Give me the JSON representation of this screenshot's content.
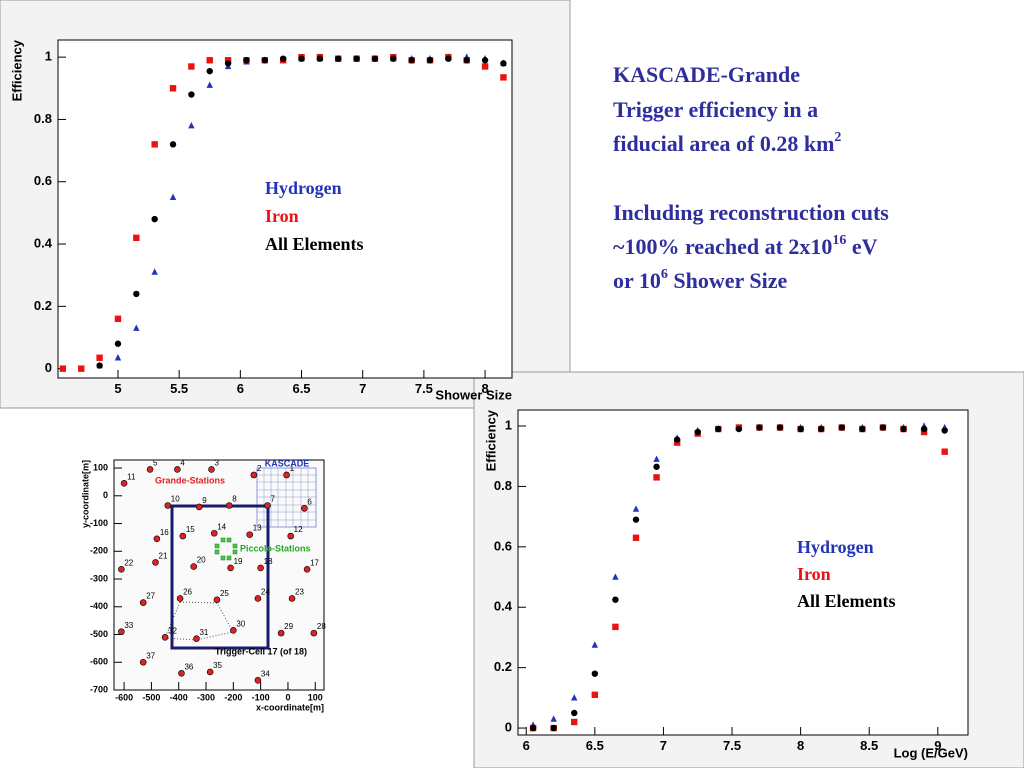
{
  "slide_text": {
    "paragraphs": [
      [
        [
          "KASCADE-Grande"
        ],
        [
          "Trigger efficiency in a"
        ],
        [
          "fiducial area of 0.28 km",
          "2"
        ]
      ],
      [
        [
          "Including reconstruction cuts"
        ],
        [
          "~100% reached at 2x10",
          "16",
          " eV"
        ],
        [
          "or 10",
          "6",
          " Shower Size"
        ]
      ]
    ]
  },
  "chart_data": [
    {
      "type": "scatter",
      "x_label": "Shower Size",
      "y_label": "Efficiency",
      "x": [
        4.55,
        4.7,
        4.85,
        5,
        5.15,
        5.3,
        5.45,
        5.6,
        5.75,
        5.9,
        6.05,
        6.2,
        6.35,
        6.5,
        6.65,
        6.8,
        6.95,
        7.1,
        7.25,
        7.4,
        7.55,
        7.7,
        7.85,
        8,
        8.15
      ],
      "series": [
        {
          "name": "Hydrogen",
          "color": "#2233bb",
          "marker": "triangle",
          "values": [
            null,
            null,
            0.01,
            0.035,
            0.13,
            0.31,
            0.55,
            0.78,
            0.91,
            0.97,
            0.985,
            0.99,
            0.99,
            0.995,
            0.995,
            0.995,
            0.995,
            0.995,
            0.995,
            0.995,
            0.995,
            1.0,
            1.0,
            0.995,
            0.98
          ]
        },
        {
          "name": "Iron",
          "color": "#ee1111",
          "marker": "square",
          "values": [
            0,
            0,
            0.035,
            0.16,
            0.42,
            0.72,
            0.9,
            0.97,
            0.99,
            0.99,
            0.99,
            0.99,
            0.99,
            1.0,
            1.0,
            0.995,
            0.995,
            0.995,
            1.0,
            0.99,
            0.99,
            1.0,
            0.99,
            0.97,
            0.935
          ]
        },
        {
          "name": "All Elements",
          "color": "#000000",
          "marker": "circle",
          "values": [
            null,
            null,
            0.01,
            0.08,
            0.24,
            0.48,
            0.72,
            0.88,
            0.955,
            0.98,
            0.99,
            0.99,
            0.995,
            0.995,
            0.995,
            0.995,
            0.995,
            0.995,
            0.995,
            0.99,
            0.99,
            0.995,
            0.99,
            0.99,
            0.98
          ]
        }
      ],
      "xlim": [
        4.51,
        8.22
      ],
      "ylim": [
        -0.03,
        1.055
      ],
      "xticks": [
        5,
        5.5,
        6,
        6.5,
        7,
        7.5,
        8
      ],
      "yticks": [
        0,
        0.2,
        0.4,
        0.6,
        0.8,
        1
      ]
    },
    {
      "type": "scatter",
      "x_label": "Log (E/GeV)",
      "y_label": "Efficiency",
      "x": [
        6.05,
        6.2,
        6.35,
        6.5,
        6.65,
        6.8,
        6.95,
        7.1,
        7.25,
        7.4,
        7.55,
        7.7,
        7.85,
        8,
        8.15,
        8.3,
        8.45,
        8.6,
        8.75,
        8.9,
        9.05
      ],
      "series": [
        {
          "name": "Hydrogen",
          "color": "#2233bb",
          "marker": "triangle",
          "values": [
            0.01,
            0.03,
            0.1,
            0.275,
            0.5,
            0.725,
            0.89,
            0.96,
            0.985,
            0.99,
            0.995,
            0.995,
            0.995,
            0.995,
            0.995,
            0.995,
            0.995,
            0.995,
            0.995,
            1.0,
            0.995
          ]
        },
        {
          "name": "Iron",
          "color": "#ee1111",
          "marker": "square",
          "values": [
            0,
            0,
            0.02,
            0.11,
            0.335,
            0.63,
            0.83,
            0.945,
            0.975,
            0.99,
            0.995,
            0.995,
            0.995,
            0.99,
            0.99,
            0.995,
            0.99,
            0.995,
            0.99,
            0.98,
            0.915
          ]
        },
        {
          "name": "All Elements",
          "color": "#000000",
          "marker": "circle",
          "values": [
            0,
            0,
            0.05,
            0.18,
            0.425,
            0.69,
            0.865,
            0.955,
            0.98,
            0.99,
            0.99,
            0.995,
            0.995,
            0.99,
            0.99,
            0.995,
            0.99,
            0.995,
            0.99,
            0.99,
            0.985
          ]
        }
      ],
      "xlim": [
        5.94,
        9.22
      ],
      "ylim": [
        -0.023,
        1.053
      ],
      "xticks": [
        6,
        6.5,
        7,
        7.5,
        8,
        8.5,
        9
      ],
      "yticks": [
        0,
        0.2,
        0.4,
        0.6,
        0.8,
        1
      ]
    },
    {
      "type": "scatter",
      "x_label": "x-coordinate[m]",
      "y_label": "y-coordinate[m]",
      "annotations": [
        {
          "text": "KASCADE",
          "color": "#2233bb"
        },
        {
          "text": "Piccolo-Stations",
          "color": "#22aa22"
        },
        {
          "text": "Trigger-Cell 17 (of 18)",
          "color": "#000000"
        }
      ],
      "series": [
        {
          "name": "Grande-Stations",
          "color": "#dd2222",
          "marker": "dot",
          "x": [
            -600,
            -505,
            -405,
            -280,
            -125,
            -5,
            -440,
            -325,
            -215,
            -75,
            60,
            -480,
            -385,
            -270,
            -140,
            10,
            -610,
            -485,
            -345,
            -210,
            -100,
            70,
            -530,
            -395,
            -260,
            -110,
            15,
            -610,
            -450,
            -335,
            -200,
            -25,
            95,
            -530,
            -390,
            -285,
            -110
          ],
          "values": [
            45,
            95,
            95,
            95,
            75,
            75,
            -35,
            -40,
            -35,
            -35,
            -45,
            -155,
            -145,
            -135,
            -140,
            -145,
            -265,
            -240,
            -255,
            -260,
            -260,
            -265,
            -385,
            -370,
            -375,
            -370,
            -370,
            -490,
            -510,
            -515,
            -485,
            -495,
            -495,
            -600,
            -640,
            -635,
            -665
          ],
          "point_labels": [
            "11",
            "5",
            "4",
            "3",
            "2",
            "1",
            "10",
            "9",
            "8",
            "7",
            "6",
            "16",
            "15",
            "14",
            "13",
            "12",
            "22",
            "21",
            "20",
            "19",
            "18",
            "17",
            "27",
            "26",
            "25",
            "24",
            "23",
            "33",
            "32",
            "31",
            "30",
            "29",
            "28",
            "37",
            "36",
            "35",
            "34"
          ]
        }
      ],
      "xlim": [
        -637,
        132
      ],
      "ylim": [
        -700,
        129
      ],
      "xticks": [
        -600,
        -500,
        -400,
        -300,
        -200,
        -100,
        0,
        100
      ],
      "yticks": [
        -700,
        -600,
        -500,
        -400,
        -300,
        -200,
        -100,
        0,
        100
      ]
    }
  ]
}
